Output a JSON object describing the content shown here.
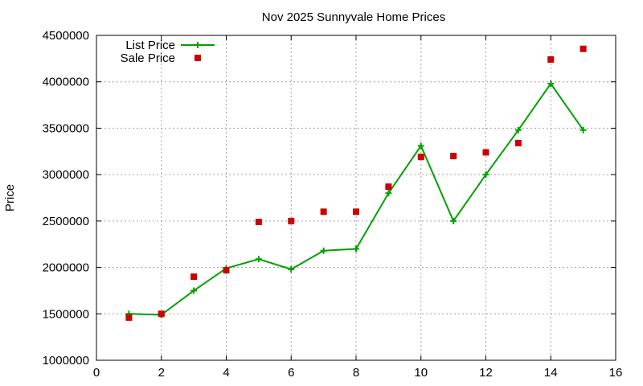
{
  "chart_data": {
    "type": "line",
    "title": "Nov 2025 Sunnyvale Home Prices",
    "xlabel": "",
    "ylabel": "Price",
    "xlim": [
      0,
      16
    ],
    "ylim": [
      1000000,
      4500000
    ],
    "xticks": [
      0,
      2,
      4,
      6,
      8,
      10,
      12,
      14,
      16
    ],
    "yticks": [
      1000000,
      1500000,
      2000000,
      2500000,
      3000000,
      3500000,
      4000000,
      4500000
    ],
    "grid": true,
    "legend_position": "top-left",
    "series": [
      {
        "name": "List Price",
        "style": "linespoints",
        "marker": "plus",
        "color": "#00a000",
        "x": [
          1,
          2,
          3,
          4,
          5,
          6,
          7,
          8,
          9,
          10,
          11,
          12,
          13,
          14,
          15
        ],
        "values": [
          1500000,
          1490000,
          1750000,
          1990000,
          2090000,
          1980000,
          2180000,
          2200000,
          2800000,
          3310000,
          2500000,
          3000000,
          3480000,
          3980000,
          3480000
        ]
      },
      {
        "name": "Sale Price",
        "style": "points",
        "marker": "square",
        "color": "#cc0000",
        "x": [
          1,
          2,
          3,
          4,
          5,
          6,
          7,
          8,
          9,
          10,
          11,
          12,
          13,
          14,
          15
        ],
        "values": [
          1460000,
          1500000,
          1900000,
          1970000,
          2490000,
          2500000,
          2600000,
          2600000,
          2870000,
          3190000,
          3200000,
          3240000,
          3340000,
          4240000,
          4355000
        ]
      }
    ]
  }
}
